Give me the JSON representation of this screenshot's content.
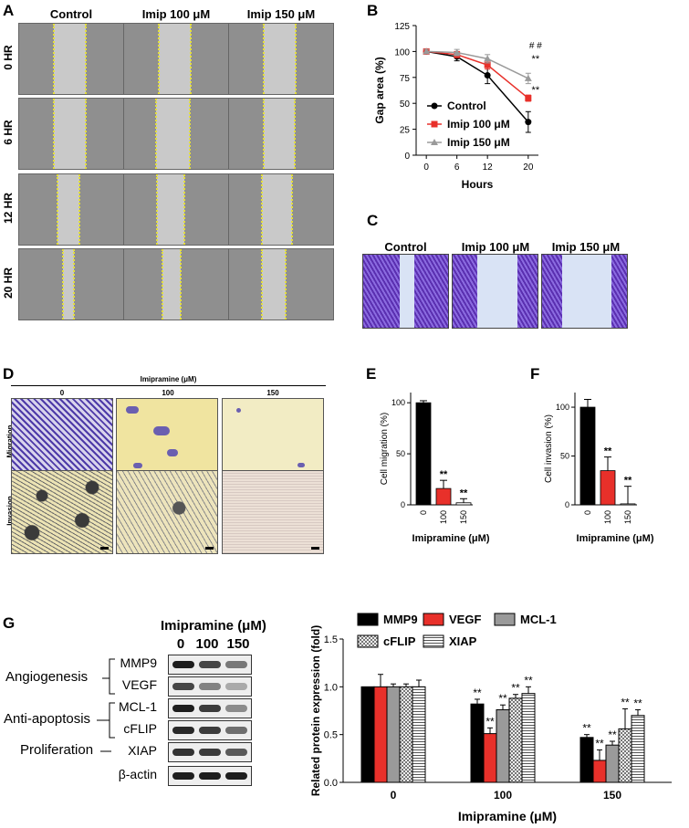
{
  "panel_labels": {
    "A": "A",
    "B": "B",
    "C": "C",
    "D": "D",
    "E": "E",
    "F": "F",
    "G": "G"
  },
  "panelA": {
    "columns": [
      "Control",
      "Imip 100 μM",
      "Imip 150 μM"
    ],
    "rows": [
      "0 HR",
      "6 HR",
      "12 HR",
      "20 HR"
    ]
  },
  "panelC": {
    "columns": [
      "Control",
      "Imip 100 μM",
      "Imip 150 μM"
    ]
  },
  "panelD": {
    "header": "Imipramine (μM)",
    "columns": [
      "0",
      "100",
      "150"
    ],
    "rows": [
      "Migration",
      "Invasion"
    ]
  },
  "panelG": {
    "blot_header": "Imipramine (μM)",
    "lanes": [
      "0",
      "100",
      "150"
    ],
    "groups": [
      "Angiogenesis",
      "Anti-apoptosis",
      "Proliferation"
    ],
    "proteins": [
      "MMP9",
      "VEGF",
      "MCL-1",
      "cFLIP",
      "XIAP",
      "β-actin"
    ],
    "colors": {
      "black": "#000000",
      "red": "#e8302a",
      "gray": "#9a9a9a"
    }
  },
  "chart_data": [
    {
      "type": "line",
      "panel": "B",
      "xlabel": "Hours",
      "ylabel": "Gap area (%)",
      "x": [
        0,
        6,
        12,
        20
      ],
      "xticks": [
        "0",
        "6",
        "12",
        "20"
      ],
      "yticks": [
        "0",
        "25",
        "50",
        "75",
        "100",
        "125"
      ],
      "ylim": [
        0,
        125
      ],
      "legend_position": "bottom-left",
      "annotations": [
        "# #",
        "**",
        "**"
      ],
      "series": [
        {
          "name": "Control",
          "color": "#000000",
          "marker": "circle",
          "values": [
            100,
            95,
            77,
            32
          ],
          "errors": [
            2,
            4,
            8,
            10
          ]
        },
        {
          "name": "Imip 100 μM",
          "color": "#e8302a",
          "marker": "square",
          "values": [
            100,
            97,
            87,
            55
          ],
          "errors": [
            2,
            3,
            4,
            3
          ]
        },
        {
          "name": "Imip 150 μM",
          "color": "#9a9a9a",
          "marker": "triangle",
          "values": [
            100,
            99,
            93,
            74
          ],
          "errors": [
            2,
            3,
            4,
            5
          ]
        }
      ]
    },
    {
      "type": "bar",
      "panel": "E",
      "xlabel": "Imipramine (μM)",
      "ylabel": "Cell migration (%)",
      "categories": [
        "0",
        "100",
        "150"
      ],
      "values": [
        100,
        16,
        2
      ],
      "errors": [
        2,
        8,
        4
      ],
      "colors": [
        "#000000",
        "#e8302a",
        "#ffffff"
      ],
      "yticks": [
        "0",
        "50",
        "100"
      ],
      "ylim": [
        0,
        110
      ],
      "stars": [
        "",
        "**",
        "**"
      ]
    },
    {
      "type": "bar",
      "panel": "F",
      "xlabel": "Imipramine (μM)",
      "ylabel": "Cell invasion (%)",
      "categories": [
        "0",
        "100",
        "150"
      ],
      "values": [
        100,
        35,
        1
      ],
      "errors": [
        8,
        14,
        18
      ],
      "colors": [
        "#000000",
        "#e8302a",
        "#ffffff"
      ],
      "yticks": [
        "0",
        "50",
        "100"
      ],
      "ylim": [
        0,
        115
      ],
      "stars": [
        "",
        "**",
        "**"
      ]
    },
    {
      "type": "bar",
      "panel": "G",
      "xlabel": "Imipramine (μM)",
      "ylabel": "Related protein expression (fold)",
      "categories": [
        "0",
        "100",
        "150"
      ],
      "yticks": [
        "0.0",
        "0.5",
        "1.0",
        "1.5"
      ],
      "ylim": [
        0,
        1.5
      ],
      "legend_position": "top",
      "series": [
        {
          "name": "MMP9",
          "color": "#000000",
          "pattern": "solid",
          "values": [
            1.0,
            0.82,
            0.47
          ],
          "errors": [
            0,
            0.05,
            0.03
          ],
          "stars": [
            "",
            "**",
            "**"
          ]
        },
        {
          "name": "VEGF",
          "color": "#e8302a",
          "pattern": "solid",
          "values": [
            1.0,
            0.51,
            0.23
          ],
          "errors": [
            0.13,
            0.06,
            0.11
          ],
          "stars": [
            "",
            "**",
            "**"
          ]
        },
        {
          "name": "MCL-1",
          "color": "#9a9a9a",
          "pattern": "solid",
          "values": [
            1.0,
            0.76,
            0.39
          ],
          "errors": [
            0.03,
            0.05,
            0.04
          ],
          "stars": [
            "",
            "**",
            "**"
          ]
        },
        {
          "name": "cFLIP",
          "color": "#d0d0d0",
          "pattern": "checker",
          "values": [
            1.0,
            0.88,
            0.56
          ],
          "errors": [
            0.03,
            0.04,
            0.21
          ],
          "stars": [
            "",
            "**",
            "**"
          ]
        },
        {
          "name": "XIAP",
          "color": "#ffffff",
          "pattern": "hstripe",
          "values": [
            1.0,
            0.93,
            0.7
          ],
          "errors": [
            0.07,
            0.07,
            0.06
          ],
          "stars": [
            "",
            "**",
            "**"
          ]
        }
      ]
    }
  ]
}
